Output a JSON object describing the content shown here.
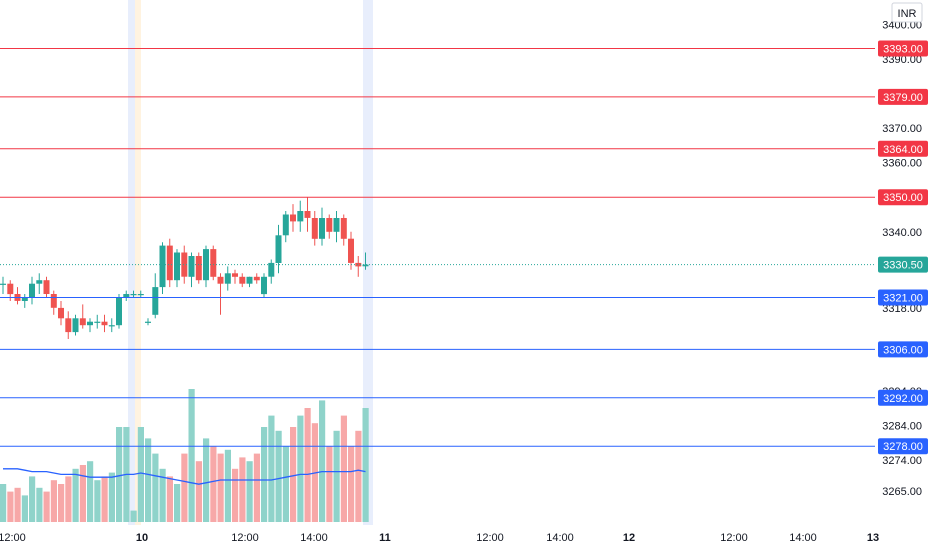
{
  "currency_label": "INR",
  "price_scale": {
    "ticks": [
      "3400.00",
      "3390.00",
      "3370.00",
      "3360.00",
      "3340.00",
      "3318.00",
      "3294.00",
      "3284.00",
      "3274.00",
      "3265.00"
    ],
    "current_price": "3330.50",
    "current_price_value": 3330.5
  },
  "levels": [
    {
      "label": "3393.00",
      "value": 3393,
      "color": "#f23645"
    },
    {
      "label": "3379.00",
      "value": 3379,
      "color": "#f23645"
    },
    {
      "label": "3364.00",
      "value": 3364,
      "color": "#f23645"
    },
    {
      "label": "3350.00",
      "value": 3350,
      "color": "#f23645"
    },
    {
      "label": "3321.00",
      "value": 3321,
      "color": "#2962ff"
    },
    {
      "label": "3306.00",
      "value": 3306,
      "color": "#2962ff"
    },
    {
      "label": "3292.00",
      "value": 3292,
      "color": "#2962ff"
    },
    {
      "label": "3278.00",
      "value": 3278,
      "color": "#2962ff"
    }
  ],
  "time_axis": {
    "labels": [
      {
        "text": "12:00",
        "bold": false
      },
      {
        "text": "10",
        "bold": true
      },
      {
        "text": "12:00",
        "bold": false
      },
      {
        "text": "14:00",
        "bold": false
      },
      {
        "text": "11",
        "bold": true
      },
      {
        "text": "12:00",
        "bold": false
      },
      {
        "text": "14:00",
        "bold": false
      },
      {
        "text": "12",
        "bold": true
      },
      {
        "text": "12:00",
        "bold": false
      },
      {
        "text": "14:00",
        "bold": false
      },
      {
        "text": "13",
        "bold": true
      }
    ]
  },
  "colors": {
    "up": "#26a69a",
    "down": "#ef5350",
    "volume_up": "#8fd3ca",
    "volume_down": "#f7a8a8",
    "volume_ma": "#2962ff",
    "session_highlight": "#e8eefc",
    "session_highlight_alt": "#fff3e0"
  },
  "chart_data": {
    "type": "candlestick",
    "series": [
      {
        "name": "price",
        "ohlc": [
          [
            3325,
            3327,
            3322,
            3325
          ],
          [
            3325,
            3326,
            3320,
            3322
          ],
          [
            3322,
            3324,
            3319,
            3320
          ],
          [
            3320,
            3322,
            3318,
            3321
          ],
          [
            3321,
            3327,
            3319,
            3325
          ],
          [
            3325,
            3328,
            3322,
            3326
          ],
          [
            3326,
            3327,
            3321,
            3322
          ],
          [
            3322,
            3323,
            3316,
            3318
          ],
          [
            3318,
            3320,
            3313,
            3315
          ],
          [
            3315,
            3317,
            3309,
            3311
          ],
          [
            3311,
            3316,
            3310,
            3315
          ],
          [
            3315,
            3319,
            3312,
            3313
          ],
          [
            3313,
            3315,
            3311,
            3314
          ],
          [
            3314,
            3316,
            3312,
            3314
          ],
          [
            3314,
            3316,
            3311,
            3313
          ],
          [
            3313,
            3315,
            3311,
            3313
          ],
          [
            3313,
            3322,
            3312,
            3321
          ],
          [
            3321,
            3323,
            3320,
            3322
          ],
          [
            3322,
            3323,
            3321,
            3322
          ],
          [
            3322,
            3323,
            3321,
            3322
          ],
          [
            3314,
            3315,
            3313,
            3314
          ],
          [
            3316,
            3328,
            3315,
            3324
          ],
          [
            3324,
            3337,
            3322,
            3336
          ],
          [
            3336,
            3338,
            3324,
            3326
          ],
          [
            3326,
            3335,
            3324,
            3334
          ],
          [
            3334,
            3336,
            3325,
            3327
          ],
          [
            3327,
            3334,
            3324,
            3333
          ],
          [
            3333,
            3334,
            3325,
            3326
          ],
          [
            3326,
            3336,
            3324,
            3335
          ],
          [
            3335,
            3336,
            3326,
            3327
          ],
          [
            3327,
            3328,
            3316,
            3325
          ],
          [
            3325,
            3330,
            3323,
            3328
          ],
          [
            3328,
            3329,
            3325,
            3327
          ],
          [
            3327,
            3328,
            3324,
            3325
          ],
          [
            3325,
            3327,
            3324,
            3327
          ],
          [
            3327,
            3328,
            3325,
            3326
          ],
          [
            3322,
            3328,
            3321,
            3327
          ],
          [
            3327,
            3332,
            3325,
            3331
          ],
          [
            3331,
            3342,
            3328,
            3339
          ],
          [
            3339,
            3346,
            3337,
            3345
          ],
          [
            3345,
            3348,
            3340,
            3343
          ],
          [
            3343,
            3349,
            3340,
            3346
          ],
          [
            3346,
            3350,
            3340,
            3344
          ],
          [
            3344,
            3346,
            3336,
            3338
          ],
          [
            3338,
            3347,
            3336,
            3344
          ],
          [
            3344,
            3345,
            3338,
            3340
          ],
          [
            3340,
            3346,
            3337,
            3344
          ],
          [
            3344,
            3345,
            3336,
            3338
          ],
          [
            3338,
            3340,
            3329,
            3331
          ],
          [
            3331,
            3333,
            3327,
            3330
          ],
          [
            3330,
            3334,
            3329,
            3330.5
          ]
        ]
      },
      {
        "name": "volume",
        "values": [
          10,
          8,
          9,
          7,
          12,
          9,
          8,
          11,
          10,
          12,
          14,
          15,
          16,
          11,
          12,
          13,
          25,
          25,
          3,
          25,
          22,
          18,
          14,
          12,
          10,
          18,
          35,
          16,
          22,
          20,
          18,
          19,
          14,
          17,
          16,
          18,
          25,
          28,
          24,
          20,
          25,
          28,
          30,
          26,
          32,
          20,
          24,
          28,
          20,
          24,
          30
        ]
      },
      {
        "name": "volume_ma",
        "values": [
          19,
          19,
          19,
          18.5,
          18,
          18,
          18,
          17.5,
          17,
          17,
          17,
          16.5,
          16,
          16,
          16,
          16,
          16.5,
          17,
          17,
          17.5,
          17,
          16.5,
          16,
          15.5,
          15,
          14.5,
          14,
          13.5,
          14,
          14.5,
          15,
          15,
          15,
          15,
          15,
          15,
          15,
          15,
          15.5,
          16,
          16.5,
          17,
          17,
          17.5,
          18,
          18,
          18,
          18,
          18,
          18.5,
          18
        ]
      }
    ],
    "ylim": [
      3261,
      3405
    ]
  }
}
